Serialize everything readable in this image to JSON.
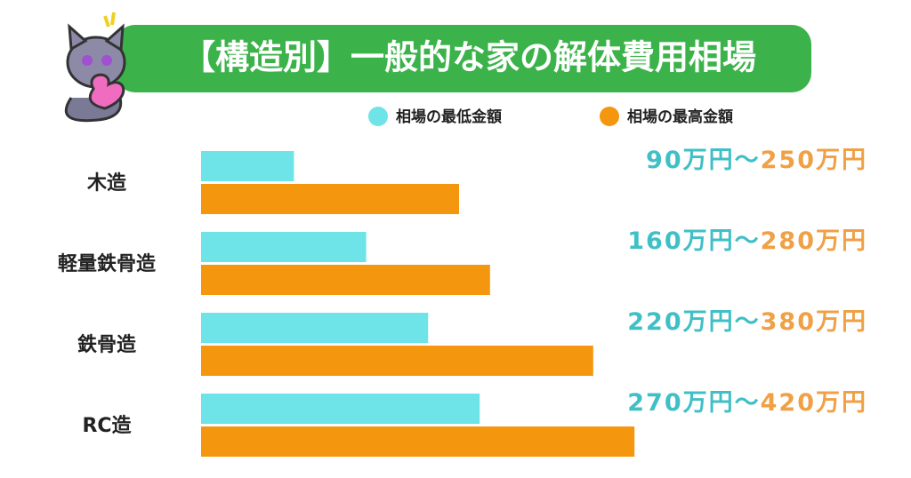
{
  "chart_data": {
    "type": "hbar",
    "title": "【構造別】一般的な家の解体費用相場",
    "categories": [
      "木造",
      "軽量鉄骨造",
      "鉄骨造",
      "RC造"
    ],
    "range_separator": "～",
    "series": [
      {
        "name": "相場の最低金額",
        "color": "#6ee3e8",
        "label_color": "#3fbfc6",
        "values": [
          90,
          160,
          220,
          270
        ],
        "value_labels": [
          "90万円",
          "160万円",
          "220万円",
          "270万円"
        ]
      },
      {
        "name": "相場の最高金額",
        "color": "#f5960f",
        "label_color": "#f0a045",
        "values": [
          250,
          280,
          380,
          420
        ],
        "value_labels": [
          "250万円",
          "280万円",
          "380万円",
          "420万円"
        ]
      }
    ]
  }
}
